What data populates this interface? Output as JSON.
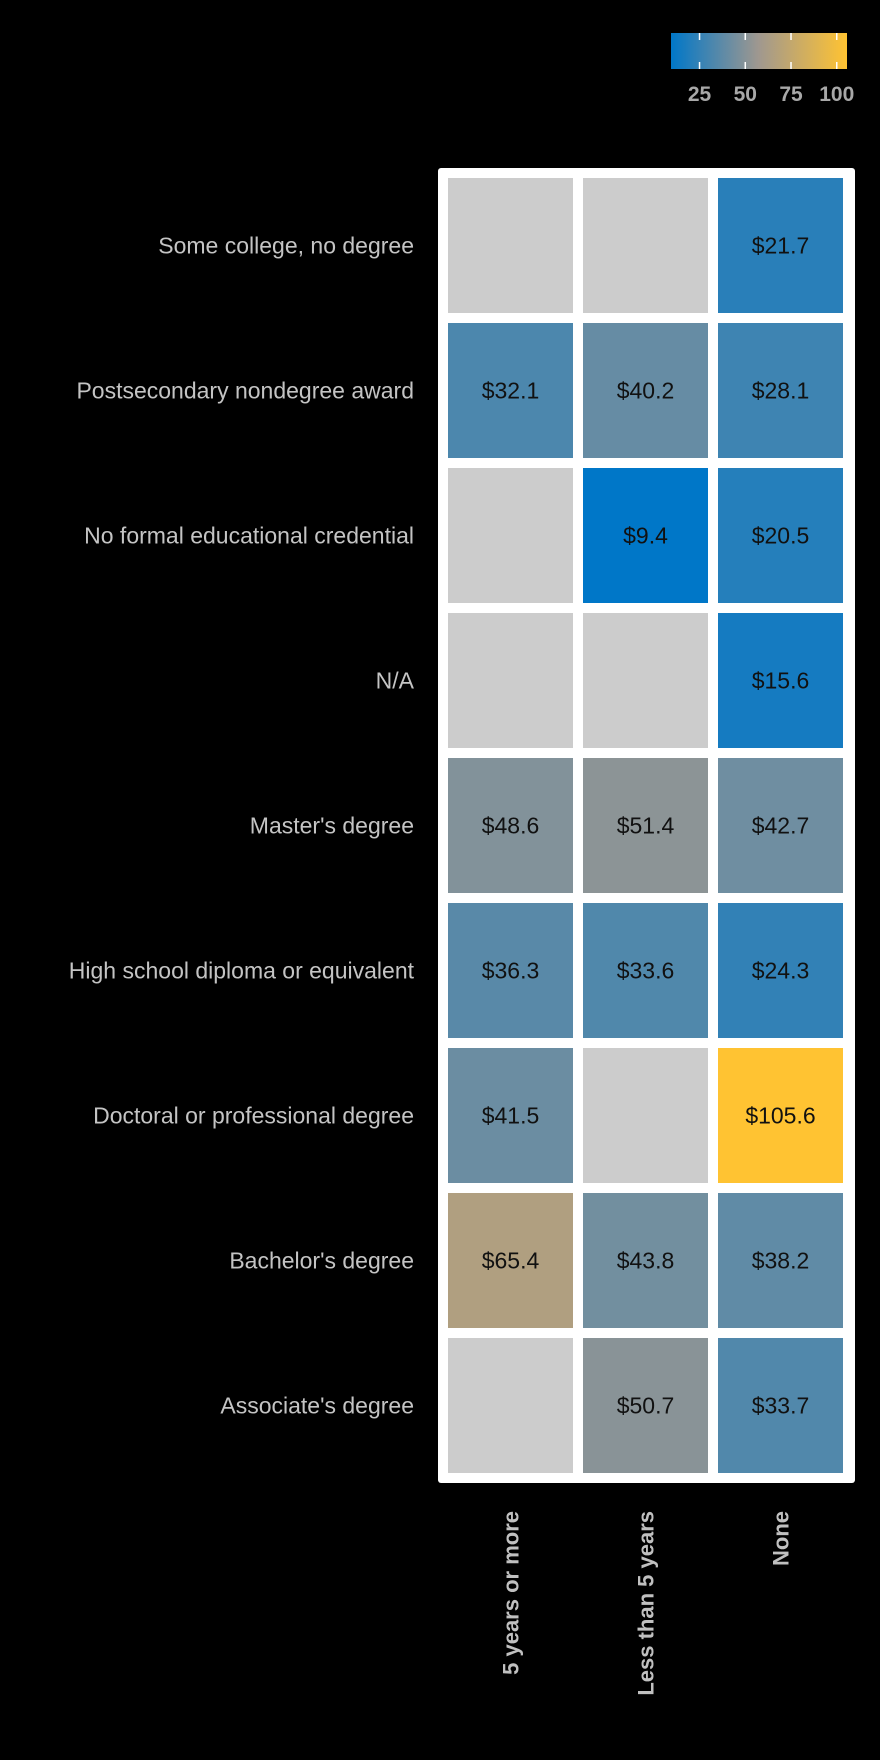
{
  "chart_data": {
    "type": "heatmap",
    "title": "",
    "xlabel": "",
    "ylabel": "",
    "x_categories": [
      "5 years or more",
      "Less than 5 years",
      "None"
    ],
    "y_categories": [
      "Some college, no degree",
      "Postsecondary nondegree award",
      "No formal educational credential",
      "N/A",
      "Master's degree",
      "High school diploma or equivalent",
      "Doctoral or professional degree",
      "Bachelor's degree",
      "Associate's degree"
    ],
    "values": [
      [
        null,
        null,
        21.7
      ],
      [
        32.1,
        40.2,
        28.1
      ],
      [
        null,
        9.4,
        20.5
      ],
      [
        null,
        null,
        15.6
      ],
      [
        48.6,
        51.4,
        42.7
      ],
      [
        36.3,
        33.6,
        24.3
      ],
      [
        41.5,
        null,
        105.6
      ],
      [
        65.4,
        43.8,
        38.2
      ],
      [
        null,
        50.7,
        33.7
      ]
    ],
    "value_prefix": "$",
    "missing_color": "#cccccc",
    "colorbar": {
      "range": [
        9.4,
        105.6
      ],
      "ticks": [
        25,
        50,
        75,
        100
      ],
      "low_color": "#0077c8",
      "mid_color": "#a0988f",
      "high_color": "#ffc332",
      "placement": "top-right"
    }
  }
}
